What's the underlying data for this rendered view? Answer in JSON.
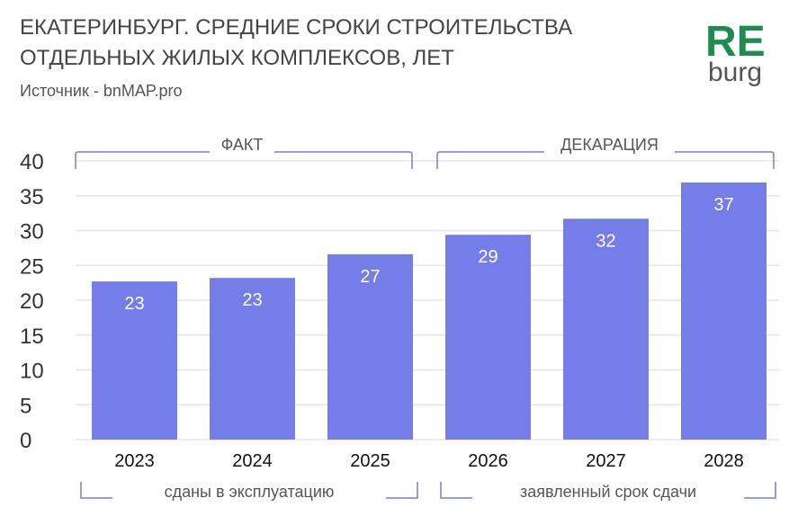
{
  "title_line1": "ЕКАТЕРИНБУРГ. СРЕДНИЕ СРОКИ СТРОИТЕЛЬСТВА",
  "title_line2": "ОТДЕЛЬНЫХ ЖИЛЫХ КОМПЛЕКСОВ, ЛЕТ",
  "source": "Источник - bnMAP.pro",
  "logo": {
    "top": "RE",
    "bottom": "burg",
    "top_color": "#1e8c4e",
    "bottom_color": "#555555"
  },
  "colors": {
    "bar": "#757de8",
    "bracket": "#757de8",
    "grid": "#e6e6e6"
  },
  "chart_data": {
    "type": "bar",
    "categories": [
      "2023",
      "2024",
      "2025",
      "2026",
      "2027",
      "2028"
    ],
    "values": [
      22.7,
      23.2,
      26.6,
      29.4,
      31.7,
      36.9
    ],
    "data_labels": [
      "23",
      "23",
      "27",
      "29",
      "32",
      "37"
    ],
    "ylim": [
      0,
      40
    ],
    "yticks": [
      "0",
      "5",
      "10",
      "15",
      "20",
      "25",
      "30",
      "35",
      "40"
    ],
    "grid": true,
    "top_groups": [
      "ФАКТ",
      "ДЕКАРАЦИЯ"
    ],
    "bottom_groups": [
      "сданы в эксплуатацию",
      "заявленный срок сдачи"
    ]
  }
}
